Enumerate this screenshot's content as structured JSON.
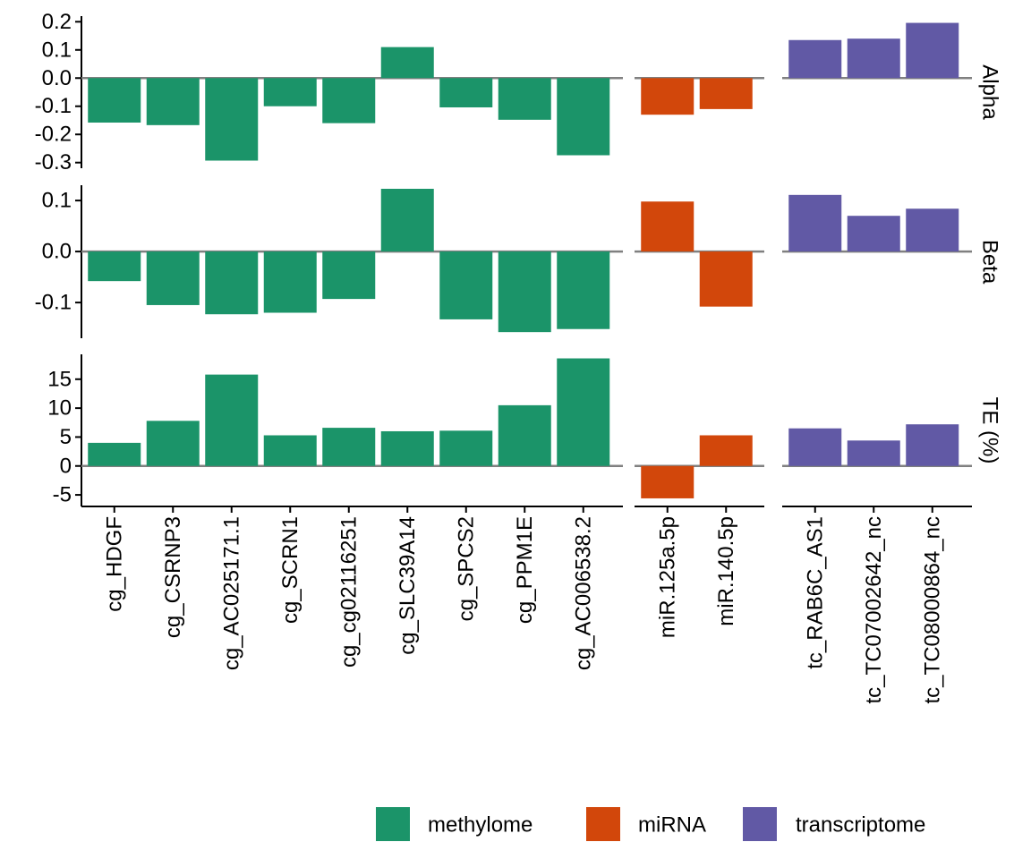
{
  "chart_data": {
    "type": "bar",
    "facet_rows": [
      "Alpha",
      "Beta",
      "TE (%)"
    ],
    "groups": [
      {
        "name": "methylome",
        "color": "#1b9469",
        "categories": [
          "cg_HDGF",
          "cg_CSRNP3",
          "cg_AC025171.1",
          "cg_SCRN1",
          "cg_cg02116251",
          "cg_SLC39A14",
          "cg_SPCS2",
          "cg_PPM1E",
          "cg_AC006538.2"
        ]
      },
      {
        "name": "miRNA",
        "color": "#d2470b",
        "categories": [
          "miR.125a.5p",
          "miR.140.5p"
        ]
      },
      {
        "name": "transcriptome",
        "color": "#6159a5",
        "categories": [
          "tc_RAB6C_AS1",
          "tc_TC07002642_nc",
          "tc_TC08000864_nc"
        ]
      }
    ],
    "panels": [
      {
        "row": "Alpha",
        "ylim": [
          -0.32,
          0.22
        ],
        "yticks": [
          0.2,
          0.1,
          0.0,
          -0.1,
          -0.2,
          -0.3
        ],
        "ytick_labels": [
          "0.2",
          "0.1",
          "0.0",
          "-0.1",
          "-0.2",
          "-0.3"
        ],
        "values": {
          "methylome": [
            -0.158,
            -0.167,
            -0.293,
            -0.1,
            -0.16,
            0.11,
            -0.104,
            -0.148,
            -0.274
          ],
          "miRNA": [
            -0.13,
            -0.11
          ],
          "transcriptome": [
            0.135,
            0.14,
            0.196
          ]
        }
      },
      {
        "row": "Beta",
        "ylim": [
          -0.17,
          0.13
        ],
        "yticks": [
          0.1,
          0.0,
          -0.1
        ],
        "ytick_labels": [
          "0.1",
          "0.0",
          "-0.1"
        ],
        "values": {
          "methylome": [
            -0.058,
            -0.105,
            -0.123,
            -0.12,
            -0.093,
            0.123,
            -0.133,
            -0.158,
            -0.152
          ],
          "miRNA": [
            0.098,
            -0.108
          ],
          "transcriptome": [
            0.111,
            0.07,
            0.084
          ]
        }
      },
      {
        "row": "TE (%)",
        "ylim": [
          -7,
          19.3
        ],
        "yticks": [
          15,
          10,
          5,
          0,
          -5
        ],
        "ytick_labels": [
          "15",
          "10",
          "5",
          "0",
          "-5"
        ],
        "values": {
          "methylome": [
            4.0,
            7.8,
            15.8,
            5.3,
            6.6,
            6.0,
            6.1,
            10.5,
            18.6
          ],
          "miRNA": [
            -5.6,
            5.3
          ],
          "transcriptome": [
            6.5,
            4.4,
            7.2
          ]
        }
      }
    ],
    "zero_line_color": "#808080",
    "grid": false,
    "legend": {
      "placement": "bottom",
      "entries": [
        "methylome",
        "miRNA",
        "transcriptome"
      ]
    }
  }
}
